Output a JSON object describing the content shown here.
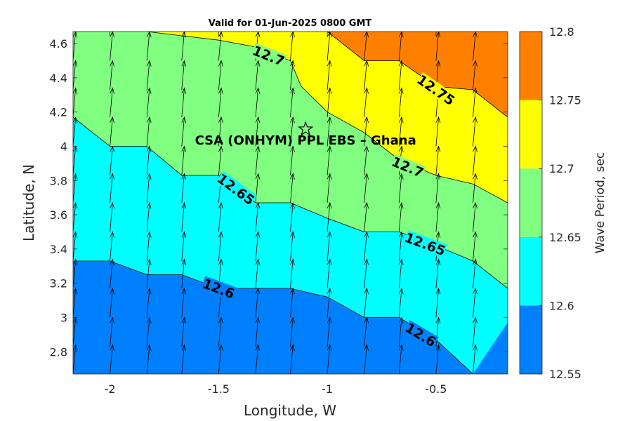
{
  "chart_data": {
    "type": "heatmap",
    "title": "Valid for 01-Jun-2025 0800 GMT",
    "xlabel": "Longitude, W",
    "ylabel": "Latitude, N",
    "xlim": [
      -2.17,
      -0.17
    ],
    "ylim": [
      2.67,
      4.67
    ],
    "xticks": [
      {
        "value": -2,
        "label": "-2"
      },
      {
        "value": -1.5,
        "label": "-1.5"
      },
      {
        "value": -1,
        "label": "-1"
      },
      {
        "value": -0.5,
        "label": "-0.5"
      }
    ],
    "yticks": [
      {
        "value": 2.8,
        "label": "2.8"
      },
      {
        "value": 3.0,
        "label": "3"
      },
      {
        "value": 3.2,
        "label": "3.2"
      },
      {
        "value": 3.4,
        "label": "3.4"
      },
      {
        "value": 3.6,
        "label": "3.6"
      },
      {
        "value": 3.8,
        "label": "3.8"
      },
      {
        "value": 4.0,
        "label": "4"
      },
      {
        "value": 4.2,
        "label": "4.2"
      },
      {
        "value": 4.4,
        "label": "4.4"
      },
      {
        "value": 4.6,
        "label": "4.6"
      }
    ],
    "colorbar": {
      "label": "Wave Period, sec",
      "levels": [
        12.55,
        12.6,
        12.65,
        12.7,
        12.75,
        12.8
      ],
      "level_labels": [
        "12.55",
        "12.6",
        "12.65",
        "12.7",
        "12.75",
        "12.8"
      ],
      "colors": [
        "#0080ff",
        "#00ffff",
        "#80ff80",
        "#ffff00",
        "#ff8000"
      ]
    },
    "contours": [
      {
        "level": 12.6,
        "points": [
          [
            -2.17,
            3.33
          ],
          [
            -2.0,
            3.33
          ],
          [
            -1.83,
            3.25
          ],
          [
            -1.67,
            3.25
          ],
          [
            -1.5,
            3.17
          ],
          [
            -1.33,
            3.17
          ],
          [
            -1.17,
            3.17
          ],
          [
            -1.0,
            3.12
          ],
          [
            -0.83,
            3.0
          ],
          [
            -0.67,
            3.0
          ],
          [
            -0.5,
            2.87
          ],
          [
            -0.33,
            2.67
          ]
        ]
      },
      {
        "level": 12.65,
        "points": [
          [
            -2.17,
            4.17
          ],
          [
            -2.0,
            4.0
          ],
          [
            -1.83,
            4.0
          ],
          [
            -1.67,
            3.83
          ],
          [
            -1.5,
            3.83
          ],
          [
            -1.33,
            3.67
          ],
          [
            -1.17,
            3.67
          ],
          [
            -1.0,
            3.58
          ],
          [
            -0.83,
            3.5
          ],
          [
            -0.67,
            3.5
          ],
          [
            -0.5,
            3.42
          ],
          [
            -0.33,
            3.33
          ],
          [
            -0.17,
            3.17
          ]
        ]
      },
      {
        "level": 12.7,
        "points": [
          [
            -1.83,
            4.67
          ],
          [
            -1.5,
            4.62
          ],
          [
            -1.33,
            4.58
          ],
          [
            -1.17,
            4.5
          ],
          [
            -1.12,
            4.35
          ],
          [
            -1.0,
            4.2
          ],
          [
            -0.83,
            4.08
          ],
          [
            -0.67,
            3.92
          ],
          [
            -0.5,
            3.83
          ],
          [
            -0.33,
            3.78
          ],
          [
            -0.17,
            3.67
          ]
        ]
      },
      {
        "level": 12.75,
        "points": [
          [
            -1.0,
            4.67
          ],
          [
            -0.83,
            4.5
          ],
          [
            -0.67,
            4.5
          ],
          [
            -0.5,
            4.35
          ],
          [
            -0.33,
            4.33
          ],
          [
            -0.17,
            4.17
          ]
        ]
      }
    ],
    "contour_labels": [
      {
        "text": "12.6",
        "lon": -1.5,
        "lat": 3.17
      },
      {
        "text": "12.6",
        "lon": -0.57,
        "lat": 2.9
      },
      {
        "text": "12.65",
        "lon": -1.42,
        "lat": 3.75
      },
      {
        "text": "12.65",
        "lon": -0.55,
        "lat": 3.43
      },
      {
        "text": "12.7",
        "lon": -1.27,
        "lat": 4.53
      },
      {
        "text": "12.7",
        "lon": -0.63,
        "lat": 3.88
      },
      {
        "text": "12.75",
        "lon": -0.5,
        "lat": 4.33
      }
    ],
    "vector_field": {
      "lons": [
        -2.17,
        -2.0,
        -1.83,
        -1.67,
        -1.5,
        -1.33,
        -1.17,
        -1.0,
        -0.83,
        -0.67,
        -0.5,
        -0.33,
        -0.17
      ],
      "lats": [
        2.67,
        2.83,
        3.0,
        3.17,
        3.33,
        3.5,
        3.67,
        3.83,
        4.0,
        4.17,
        4.33,
        4.5
      ],
      "u": 0.012,
      "v": 0.17
    },
    "site": {
      "name": "CSA (ONHYM) PPL EBS  – Ghana",
      "lon": -1.1,
      "lat": 4.1
    }
  }
}
